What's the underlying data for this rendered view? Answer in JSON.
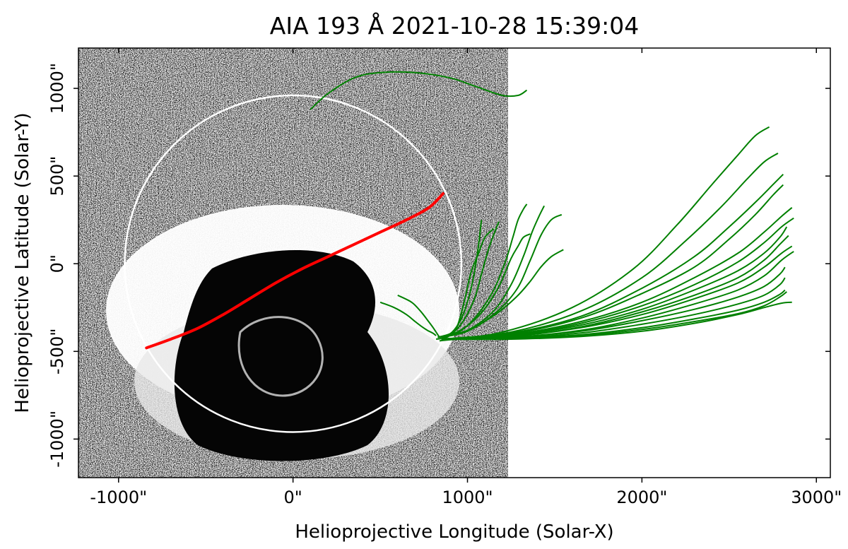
{
  "chart_data": {
    "type": "line",
    "title": "AIA 193 Å 2021-10-28 15:39:04",
    "xlabel": "Helioprojective Longitude (Solar-X)",
    "ylabel": "Helioprojective Latitude (Solar-Y)",
    "xlim": [
      -1230,
      3080
    ],
    "ylim": [
      -1220,
      1230
    ],
    "x_ticks": [
      -1000,
      0,
      1000,
      2000,
      3000
    ],
    "x_tick_labels": [
      "-1000\"",
      "0\"",
      "1000\"",
      "2000\"",
      "3000\""
    ],
    "y_ticks": [
      -1000,
      -500,
      0,
      500,
      1000
    ],
    "y_tick_labels": [
      "-1000\"",
      "-500\"",
      "0\"",
      "500\"",
      "1000\""
    ],
    "image_extent_x": [
      -1230,
      1230
    ],
    "solar_limb_radius": 965,
    "colors": {
      "image_background": "#8c8c8c",
      "limb": "#ffffff",
      "red_track": "#ff0000",
      "field_lines": "#008000"
    },
    "series": [
      {
        "color": "red",
        "x": [
          -840,
          -700,
          -550,
          -400,
          -250,
          -100,
          50,
          200,
          350,
          500,
          650,
          780,
          860
        ],
        "y": [
          -480,
          -430,
          -370,
          -290,
          -200,
          -110,
          -30,
          40,
          110,
          180,
          250,
          320,
          400
        ]
      }
    ],
    "field_lines": [
      {
        "x": [
          100,
          200,
          350,
          500,
          700,
          900,
          1050,
          1200,
          1290,
          1340
        ],
        "y": [
          880,
          970,
          1060,
          1090,
          1090,
          1060,
          1010,
          960,
          960,
          990
        ]
      },
      {
        "x": [
          840,
          1200,
          1600,
          1950,
          2200,
          2400,
          2550,
          2650,
          2730
        ],
        "y": [
          -440,
          -390,
          -250,
          -30,
          220,
          450,
          620,
          730,
          780
        ]
      },
      {
        "x": [
          850,
          1250,
          1650,
          2000,
          2250,
          2450,
          2600,
          2700,
          2780
        ],
        "y": [
          -430,
          -390,
          -270,
          -80,
          130,
          320,
          480,
          580,
          630
        ]
      },
      {
        "x": [
          850,
          1250,
          1650,
          2000,
          2300,
          2500,
          2650,
          2750,
          2810
        ],
        "y": [
          -430,
          -395,
          -300,
          -140,
          40,
          210,
          350,
          450,
          510
        ]
      },
      {
        "x": [
          850,
          1250,
          1650,
          2000,
          2300,
          2500,
          2650,
          2750,
          2810
        ],
        "y": [
          -430,
          -400,
          -310,
          -170,
          -20,
          140,
          280,
          390,
          450
        ]
      },
      {
        "x": [
          850,
          1250,
          1650,
          2000,
          2300,
          2550,
          2700,
          2800,
          2860
        ],
        "y": [
          -430,
          -405,
          -330,
          -220,
          -80,
          60,
          180,
          270,
          320
        ]
      },
      {
        "x": [
          850,
          1250,
          1650,
          2000,
          2300,
          2550,
          2700,
          2800,
          2870
        ],
        "y": [
          -430,
          -410,
          -340,
          -240,
          -120,
          10,
          120,
          210,
          260
        ]
      },
      {
        "x": [
          850,
          1250,
          1650,
          2000,
          2300,
          2550,
          2700,
          2790,
          2830
        ],
        "y": [
          -430,
          -410,
          -350,
          -260,
          -150,
          -40,
          60,
          150,
          210
        ]
      },
      {
        "x": [
          850,
          1250,
          1650,
          2000,
          2300,
          2550,
          2700,
          2790,
          2840
        ],
        "y": [
          -430,
          -415,
          -360,
          -275,
          -180,
          -80,
          20,
          110,
          160
        ]
      },
      {
        "x": [
          850,
          1250,
          1650,
          2000,
          2300,
          2550,
          2700,
          2800,
          2860
        ],
        "y": [
          -430,
          -415,
          -365,
          -290,
          -200,
          -110,
          -20,
          60,
          100
        ]
      },
      {
        "x": [
          850,
          1250,
          1650,
          2000,
          2300,
          2550,
          2700,
          2800,
          2870
        ],
        "y": [
          -430,
          -420,
          -380,
          -310,
          -230,
          -150,
          -70,
          20,
          70
        ]
      },
      {
        "x": [
          850,
          1250,
          1650,
          2000,
          2300,
          2550,
          2700,
          2790,
          2820
        ],
        "y": [
          -430,
          -420,
          -385,
          -325,
          -260,
          -190,
          -130,
          -60,
          -20
        ]
      },
      {
        "x": [
          850,
          1250,
          1650,
          2000,
          2300,
          2550,
          2700,
          2790,
          2820
        ],
        "y": [
          -430,
          -425,
          -395,
          -345,
          -290,
          -230,
          -180,
          -120,
          -80
        ]
      },
      {
        "x": [
          850,
          1250,
          1650,
          2000,
          2300,
          2550,
          2700,
          2790,
          2820
        ],
        "y": [
          -430,
          -425,
          -405,
          -365,
          -315,
          -265,
          -220,
          -175,
          -150
        ]
      },
      {
        "x": [
          850,
          1250,
          1650,
          2000,
          2300,
          2550,
          2700,
          2790,
          2830
        ],
        "y": [
          -430,
          -428,
          -410,
          -375,
          -330,
          -285,
          -240,
          -190,
          -160
        ]
      },
      {
        "x": [
          850,
          1250,
          1650,
          2000,
          2300,
          2550,
          2700,
          2800,
          2860
        ],
        "y": [
          -430,
          -430,
          -415,
          -385,
          -340,
          -290,
          -250,
          -225,
          -220
        ]
      },
      {
        "x": [
          820,
          880,
          930,
          960,
          990,
          1020,
          1060,
          1100,
          1150
        ],
        "y": [
          -430,
          -420,
          -380,
          -300,
          -180,
          -50,
          50,
          150,
          200
        ]
      },
      {
        "x": [
          830,
          900,
          950,
          990,
          1030,
          1060,
          1080
        ],
        "y": [
          -420,
          -400,
          -340,
          -250,
          -100,
          80,
          250
        ]
      },
      {
        "x": [
          830,
          920,
          980,
          1040,
          1080,
          1120,
          1160,
          1180
        ],
        "y": [
          -420,
          -390,
          -320,
          -200,
          -60,
          80,
          190,
          240
        ]
      },
      {
        "x": [
          840,
          950,
          1050,
          1150,
          1220,
          1260,
          1290,
          1320,
          1340
        ],
        "y": [
          -420,
          -390,
          -300,
          -150,
          20,
          150,
          250,
          310,
          340
        ]
      },
      {
        "x": [
          840,
          960,
          1080,
          1180,
          1250,
          1290,
          1320,
          1360
        ],
        "y": [
          -420,
          -380,
          -280,
          -130,
          30,
          100,
          150,
          170
        ]
      },
      {
        "x": [
          850,
          1000,
          1150,
          1250,
          1320,
          1370,
          1410,
          1440
        ],
        "y": [
          -420,
          -380,
          -270,
          -120,
          40,
          180,
          270,
          330
        ]
      },
      {
        "x": [
          850,
          1000,
          1150,
          1280,
          1360,
          1420,
          1480,
          1540
        ],
        "y": [
          -420,
          -385,
          -290,
          -150,
          20,
          160,
          250,
          280
        ]
      },
      {
        "x": [
          850,
          1000,
          1160,
          1280,
          1360,
          1420,
          1480,
          1550
        ],
        "y": [
          -420,
          -380,
          -290,
          -190,
          -100,
          -20,
          40,
          80
        ]
      },
      {
        "x": [
          500,
          580,
          650,
          700,
          740,
          770,
          800,
          820
        ],
        "y": [
          -220,
          -250,
          -290,
          -330,
          -360,
          -380,
          -395,
          -410
        ]
      },
      {
        "x": [
          600,
          680,
          730,
          770,
          800,
          820,
          840
        ],
        "y": [
          -180,
          -220,
          -270,
          -320,
          -360,
          -390,
          -420
        ]
      }
    ]
  }
}
